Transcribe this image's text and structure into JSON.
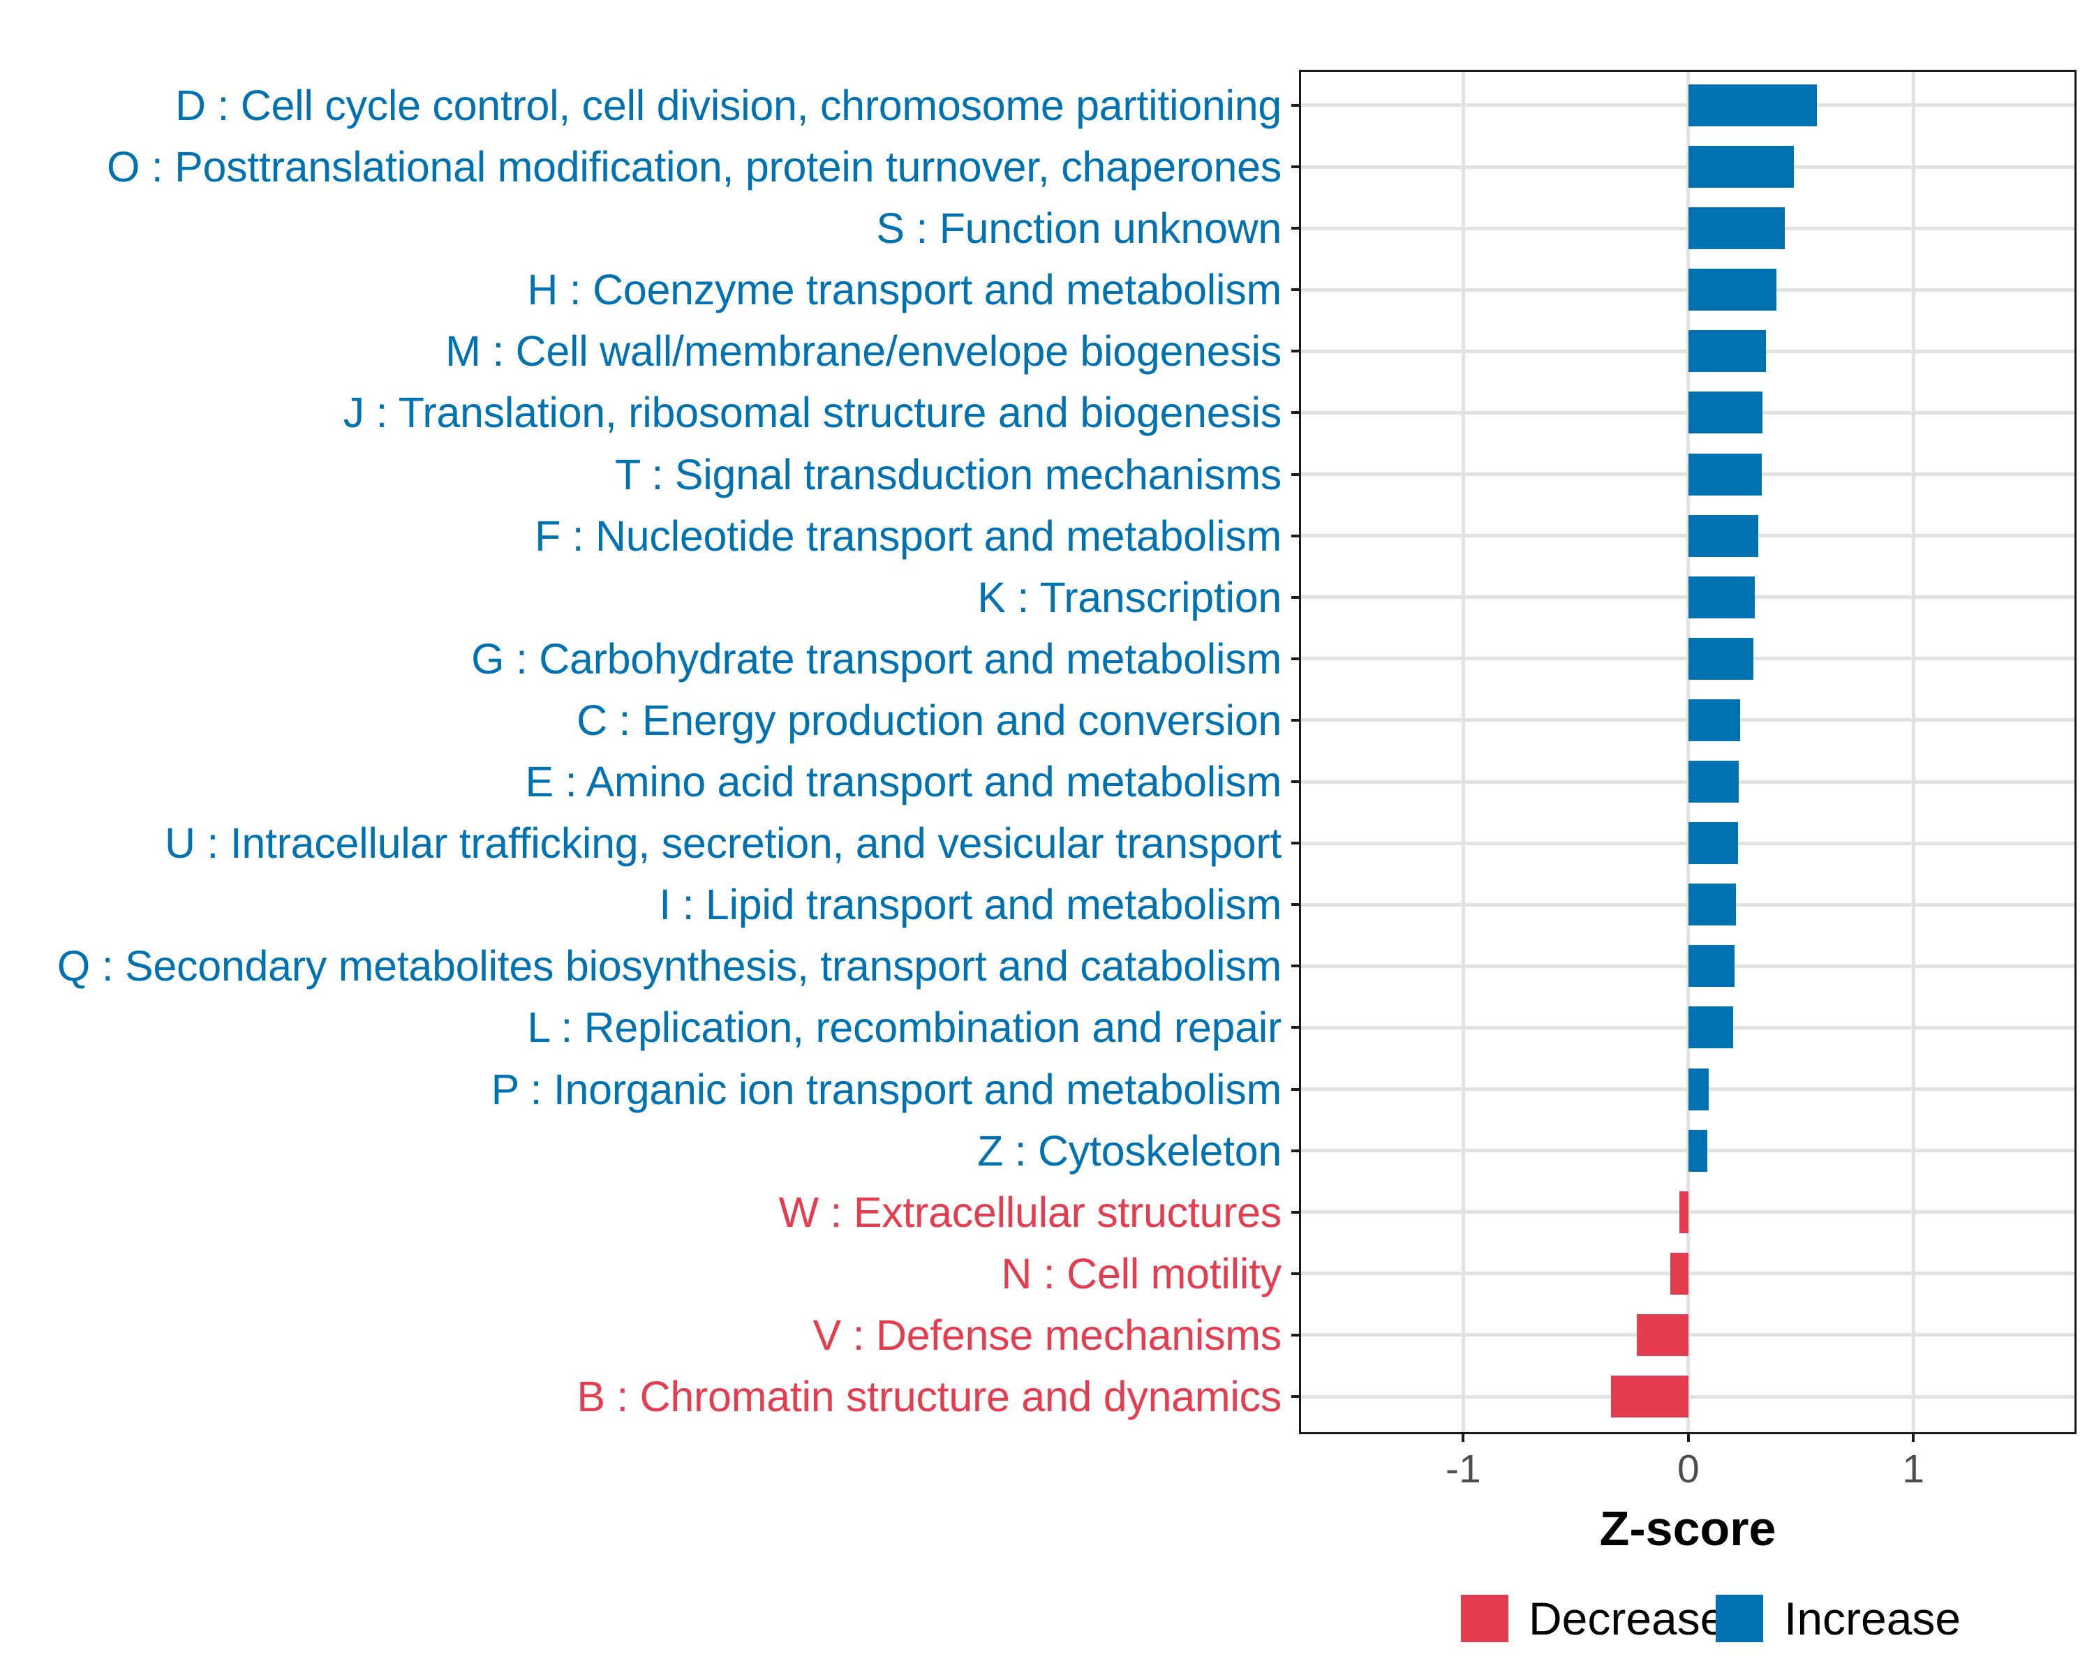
{
  "chart_data": {
    "type": "bar",
    "orientation": "horizontal",
    "title": "",
    "xlabel": "Z-score",
    "xlim": [
      -1.73,
      1.725
    ],
    "grid": "major-only",
    "legend_position": "bottom",
    "x_ticks": [
      {
        "value": -1,
        "label": "-1"
      },
      {
        "value": 0,
        "label": "0"
      },
      {
        "value": 1,
        "label": "1"
      }
    ],
    "legend": [
      {
        "label": "Decrease",
        "color": "#E43D4F"
      },
      {
        "label": "Increase",
        "color": "#0072B2"
      }
    ],
    "rows": [
      {
        "label": "D : Cell cycle control, cell division, chromosome partitioning",
        "value": 0.57,
        "group": "Increase"
      },
      {
        "label": "O : Posttranslational modification, protein turnover, chaperones",
        "value": 0.47,
        "group": "Increase"
      },
      {
        "label": "S : Function unknown",
        "value": 0.43,
        "group": "Increase"
      },
      {
        "label": "H : Coenzyme transport and metabolism",
        "value": 0.39,
        "group": "Increase"
      },
      {
        "label": "M : Cell wall/membrane/envelope biogenesis",
        "value": 0.345,
        "group": "Increase"
      },
      {
        "label": "J : Translation, ribosomal structure and biogenesis",
        "value": 0.33,
        "group": "Increase"
      },
      {
        "label": "T : Signal transduction mechanisms",
        "value": 0.325,
        "group": "Increase"
      },
      {
        "label": "F : Nucleotide transport and metabolism",
        "value": 0.31,
        "group": "Increase"
      },
      {
        "label": "K : Transcription",
        "value": 0.295,
        "group": "Increase"
      },
      {
        "label": "G : Carbohydrate transport and metabolism",
        "value": 0.29,
        "group": "Increase"
      },
      {
        "label": "C : Energy production and conversion",
        "value": 0.23,
        "group": "Increase"
      },
      {
        "label": "E : Amino acid transport and metabolism",
        "value": 0.225,
        "group": "Increase"
      },
      {
        "label": "U : Intracellular trafficking, secretion, and vesicular transport",
        "value": 0.22,
        "group": "Increase"
      },
      {
        "label": "I : Lipid transport and metabolism",
        "value": 0.21,
        "group": "Increase"
      },
      {
        "label": "Q : Secondary metabolites biosynthesis, transport and catabolism",
        "value": 0.205,
        "group": "Increase"
      },
      {
        "label": "L : Replication, recombination and repair",
        "value": 0.2,
        "group": "Increase"
      },
      {
        "label": "P : Inorganic ion transport and metabolism",
        "value": 0.09,
        "group": "Increase"
      },
      {
        "label": "Z : Cytoskeleton",
        "value": 0.085,
        "group": "Increase"
      },
      {
        "label": "W : Extracellular structures",
        "value": -0.04,
        "group": "Decrease"
      },
      {
        "label": "N : Cell motility",
        "value": -0.08,
        "group": "Decrease"
      },
      {
        "label": "V : Defense mechanisms",
        "value": -0.23,
        "group": "Decrease"
      },
      {
        "label": "B : Chromatin structure and dynamics",
        "value": -0.345,
        "group": "Decrease"
      }
    ]
  },
  "colors": {
    "increase": "#0072B2",
    "decrease": "#E43D4F",
    "gridline": "#e2e2e2",
    "axis": "#1a1a1a",
    "tick_label": "#4d4d4d",
    "background": "#ffffff"
  }
}
